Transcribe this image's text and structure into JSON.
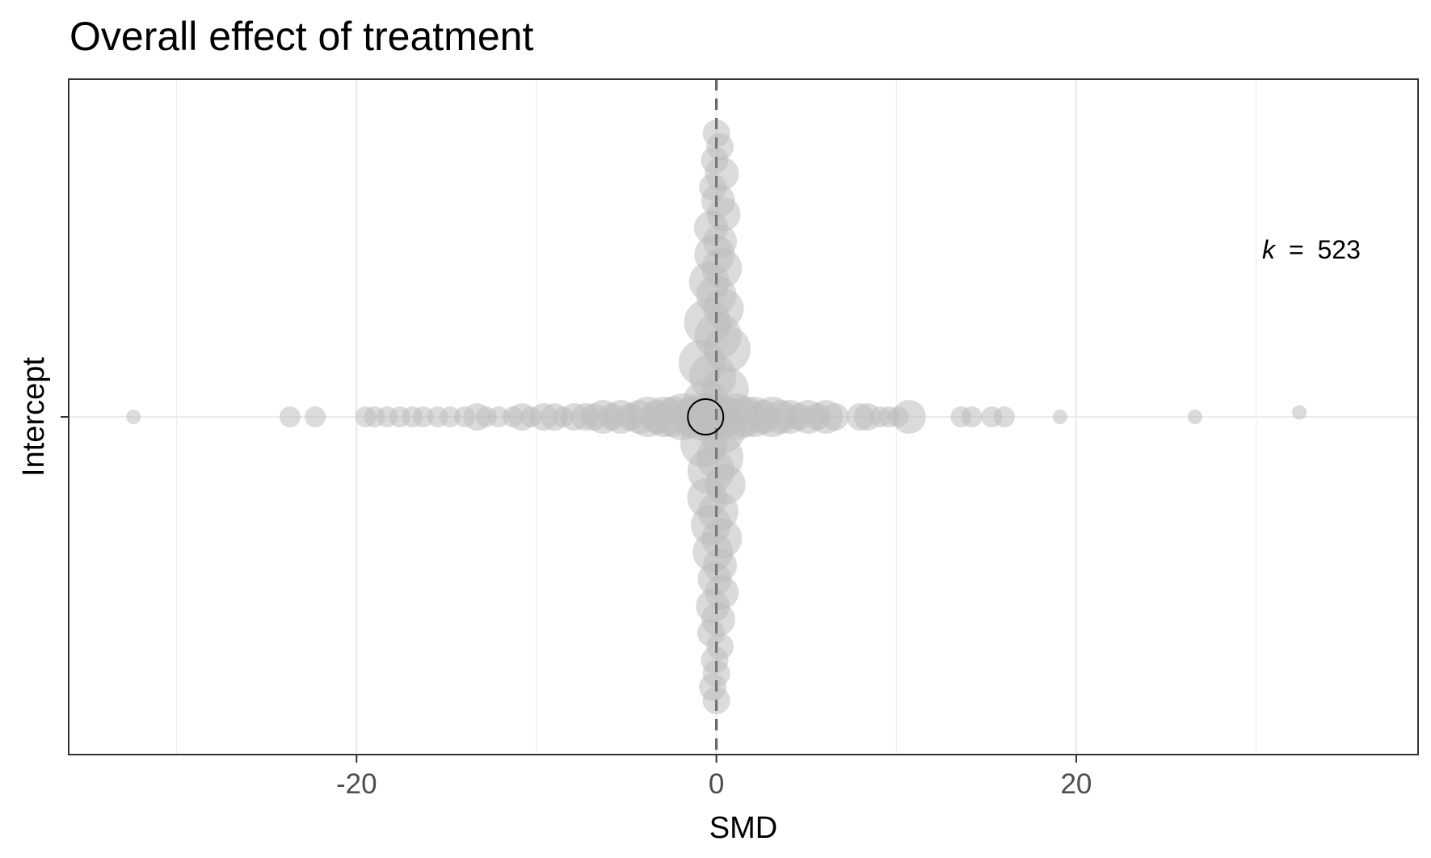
{
  "chart_data": {
    "type": "scatter",
    "title": "Overall effect of treatment",
    "xlabel": "SMD",
    "ylabel": "",
    "xlim": [
      -36,
      39
    ],
    "ylim": [
      -1.5,
      1.5
    ],
    "x_ticks": [
      -20,
      0,
      20
    ],
    "x_tick_labels": [
      "-20",
      "0",
      "20"
    ],
    "y_ticks": [
      0
    ],
    "y_tick_labels": [
      "Intercept"
    ],
    "grid": true,
    "reference_line": {
      "x": 0,
      "style": "dashed"
    },
    "annotation": {
      "k_symbol": "k",
      "equals": "=",
      "value": "523"
    },
    "point_color": "#bebebe",
    "estimate": {
      "x": -0.6,
      "y": 0,
      "style": "open-circle"
    },
    "horizontal_points": [
      {
        "x": -32.4,
        "y": 0,
        "w": 1
      },
      {
        "x": -23.7,
        "y": 0,
        "w": 2
      },
      {
        "x": -22.3,
        "y": 0,
        "w": 2
      },
      {
        "x": -19.5,
        "y": 0,
        "w": 2
      },
      {
        "x": -19.0,
        "y": 0,
        "w": 2
      },
      {
        "x": -18.3,
        "y": 0,
        "w": 2
      },
      {
        "x": -17.6,
        "y": 0,
        "w": 2
      },
      {
        "x": -16.9,
        "y": 0,
        "w": 2
      },
      {
        "x": -16.3,
        "y": 0,
        "w": 2
      },
      {
        "x": -15.5,
        "y": 0,
        "w": 2
      },
      {
        "x": -14.8,
        "y": 0,
        "w": 2
      },
      {
        "x": -14.0,
        "y": 0,
        "w": 2
      },
      {
        "x": -13.3,
        "y": 0,
        "w": 3
      },
      {
        "x": -12.8,
        "y": 0,
        "w": 2
      },
      {
        "x": -12.1,
        "y": 0,
        "w": 2
      },
      {
        "x": -11.3,
        "y": 0,
        "w": 2
      },
      {
        "x": -10.8,
        "y": 0,
        "w": 3
      },
      {
        "x": -10.3,
        "y": 0,
        "w": 2
      },
      {
        "x": -9.6,
        "y": 0,
        "w": 3
      },
      {
        "x": -9.0,
        "y": 0,
        "w": 3
      },
      {
        "x": -8.5,
        "y": 0,
        "w": 2
      },
      {
        "x": -7.9,
        "y": 0,
        "w": 3
      },
      {
        "x": -7.3,
        "y": 0,
        "w": 3
      },
      {
        "x": -6.8,
        "y": 0,
        "w": 3
      },
      {
        "x": -6.3,
        "y": 0,
        "w": 4
      },
      {
        "x": -5.8,
        "y": 0,
        "w": 3
      },
      {
        "x": -5.3,
        "y": 0,
        "w": 4
      },
      {
        "x": -4.8,
        "y": 0,
        "w": 3
      },
      {
        "x": -4.3,
        "y": 0,
        "w": 4
      },
      {
        "x": -3.8,
        "y": 0,
        "w": 5
      },
      {
        "x": -3.3,
        "y": 0,
        "w": 4
      },
      {
        "x": -2.9,
        "y": 0,
        "w": 5
      },
      {
        "x": -2.4,
        "y": 0,
        "w": 5
      },
      {
        "x": -1.9,
        "y": 0,
        "w": 6
      },
      {
        "x": -1.4,
        "y": 0,
        "w": 5
      },
      {
        "x": -0.9,
        "y": 0,
        "w": 6
      },
      {
        "x": -0.4,
        "y": 0,
        "w": 6
      },
      {
        "x": 0.1,
        "y": 0,
        "w": 6
      },
      {
        "x": 0.6,
        "y": 0,
        "w": 5
      },
      {
        "x": 1.1,
        "y": 0,
        "w": 6
      },
      {
        "x": 1.6,
        "y": 0,
        "w": 5
      },
      {
        "x": 2.1,
        "y": 0,
        "w": 5
      },
      {
        "x": 2.6,
        "y": 0,
        "w": 4
      },
      {
        "x": 3.1,
        "y": 0,
        "w": 5
      },
      {
        "x": 3.6,
        "y": 0,
        "w": 4
      },
      {
        "x": 4.1,
        "y": 0,
        "w": 4
      },
      {
        "x": 4.6,
        "y": 0,
        "w": 3
      },
      {
        "x": 5.1,
        "y": 0,
        "w": 4
      },
      {
        "x": 5.6,
        "y": 0,
        "w": 3
      },
      {
        "x": 6.1,
        "y": 0,
        "w": 4
      },
      {
        "x": 6.6,
        "y": 0,
        "w": 3
      },
      {
        "x": 8.0,
        "y": 0,
        "w": 3
      },
      {
        "x": 8.4,
        "y": 0,
        "w": 3
      },
      {
        "x": 9.1,
        "y": 0,
        "w": 2
      },
      {
        "x": 9.6,
        "y": 0,
        "w": 2
      },
      {
        "x": 10.1,
        "y": 0,
        "w": 2
      },
      {
        "x": 10.7,
        "y": 0,
        "w": 4
      },
      {
        "x": 13.6,
        "y": 0,
        "w": 2
      },
      {
        "x": 14.2,
        "y": 0,
        "w": 2
      },
      {
        "x": 15.3,
        "y": 0,
        "w": 2
      },
      {
        "x": 16.0,
        "y": 0,
        "w": 2
      },
      {
        "x": 19.1,
        "y": 0,
        "w": 1
      },
      {
        "x": 26.6,
        "y": 0,
        "w": 1
      },
      {
        "x": 32.4,
        "y": 0.02,
        "w": 1
      }
    ],
    "vertical_points": [
      {
        "x": 0.0,
        "y": 1.26,
        "w": 3
      },
      {
        "x": 0.2,
        "y": 1.2,
        "w": 3
      },
      {
        "x": -0.1,
        "y": 1.14,
        "w": 3
      },
      {
        "x": 0.3,
        "y": 1.08,
        "w": 4
      },
      {
        "x": -0.2,
        "y": 1.02,
        "w": 3
      },
      {
        "x": 0.1,
        "y": 0.96,
        "w": 4
      },
      {
        "x": 0.4,
        "y": 0.9,
        "w": 4
      },
      {
        "x": -0.3,
        "y": 0.84,
        "w": 4
      },
      {
        "x": 0.2,
        "y": 0.78,
        "w": 4
      },
      {
        "x": -0.1,
        "y": 0.72,
        "w": 5
      },
      {
        "x": 0.3,
        "y": 0.66,
        "w": 5
      },
      {
        "x": -0.4,
        "y": 0.6,
        "w": 5
      },
      {
        "x": 0.0,
        "y": 0.54,
        "w": 5
      },
      {
        "x": 0.4,
        "y": 0.48,
        "w": 5
      },
      {
        "x": -0.5,
        "y": 0.42,
        "w": 6
      },
      {
        "x": 0.1,
        "y": 0.36,
        "w": 6
      },
      {
        "x": 0.6,
        "y": 0.3,
        "w": 6
      },
      {
        "x": -0.8,
        "y": 0.24,
        "w": 6
      },
      {
        "x": -0.2,
        "y": 0.18,
        "w": 6
      },
      {
        "x": 0.5,
        "y": 0.12,
        "w": 6
      },
      {
        "x": -0.6,
        "y": 0.06,
        "w": 6
      },
      {
        "x": 0.3,
        "y": -0.06,
        "w": 6
      },
      {
        "x": -0.7,
        "y": -0.12,
        "w": 6
      },
      {
        "x": 0.2,
        "y": -0.18,
        "w": 6
      },
      {
        "x": -0.3,
        "y": -0.24,
        "w": 6
      },
      {
        "x": 0.5,
        "y": -0.3,
        "w": 5
      },
      {
        "x": -0.5,
        "y": -0.36,
        "w": 5
      },
      {
        "x": 0.1,
        "y": -0.42,
        "w": 5
      },
      {
        "x": -0.3,
        "y": -0.48,
        "w": 5
      },
      {
        "x": 0.3,
        "y": -0.54,
        "w": 5
      },
      {
        "x": -0.2,
        "y": -0.6,
        "w": 5
      },
      {
        "x": 0.2,
        "y": -0.66,
        "w": 4
      },
      {
        "x": -0.1,
        "y": -0.72,
        "w": 4
      },
      {
        "x": 0.3,
        "y": -0.78,
        "w": 4
      },
      {
        "x": -0.2,
        "y": -0.84,
        "w": 4
      },
      {
        "x": 0.1,
        "y": -0.9,
        "w": 4
      },
      {
        "x": -0.3,
        "y": -0.96,
        "w": 3
      },
      {
        "x": 0.2,
        "y": -1.02,
        "w": 3
      },
      {
        "x": -0.1,
        "y": -1.08,
        "w": 3
      },
      {
        "x": 0.0,
        "y": -1.14,
        "w": 3
      },
      {
        "x": -0.2,
        "y": -1.2,
        "w": 3
      },
      {
        "x": 0.0,
        "y": -1.26,
        "w": 3
      }
    ]
  }
}
